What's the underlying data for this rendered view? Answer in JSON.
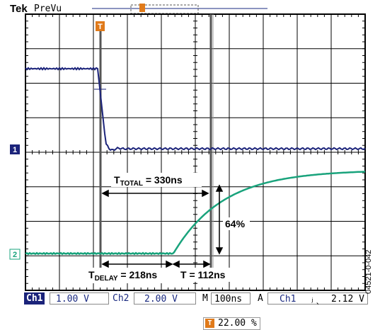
{
  "header": {
    "brand": "Tek",
    "mode": "PreVu"
  },
  "trigger_marker": "T",
  "channels": {
    "ch1": {
      "marker": "1",
      "color": "#1b237a"
    },
    "ch2": {
      "marker": "2",
      "color": "#19a37c"
    }
  },
  "annotations": {
    "total": {
      "prefix": "T",
      "sub": "TOTAL",
      "value": " = 330ns"
    },
    "delay": {
      "prefix": "T",
      "sub": "DELAY",
      "value": " = 218ns"
    },
    "rise": {
      "text": "T = 112ns"
    },
    "percent": {
      "text": "64%"
    }
  },
  "statusbar": {
    "ch1_label": "Ch1",
    "ch1_scale": "1.00 V",
    "ch2_label": "Ch2",
    "ch2_scale": "2.00 V",
    "m_label": "M",
    "timebase": "100ns",
    "a_label": "A",
    "trig_source": "Ch1",
    "trig_slope_icon": "falling-edge-icon",
    "trig_slope_glyph": "⿹",
    "trig_level": "2.12 V"
  },
  "trigger_position": {
    "icon": "T",
    "value": "22.00 %"
  },
  "figure_id": "04521-0-042",
  "colors": {
    "grid": "#000000",
    "ch1": "#1b237a",
    "ch2": "#19a37c",
    "trigger": "#e07a1a"
  }
}
